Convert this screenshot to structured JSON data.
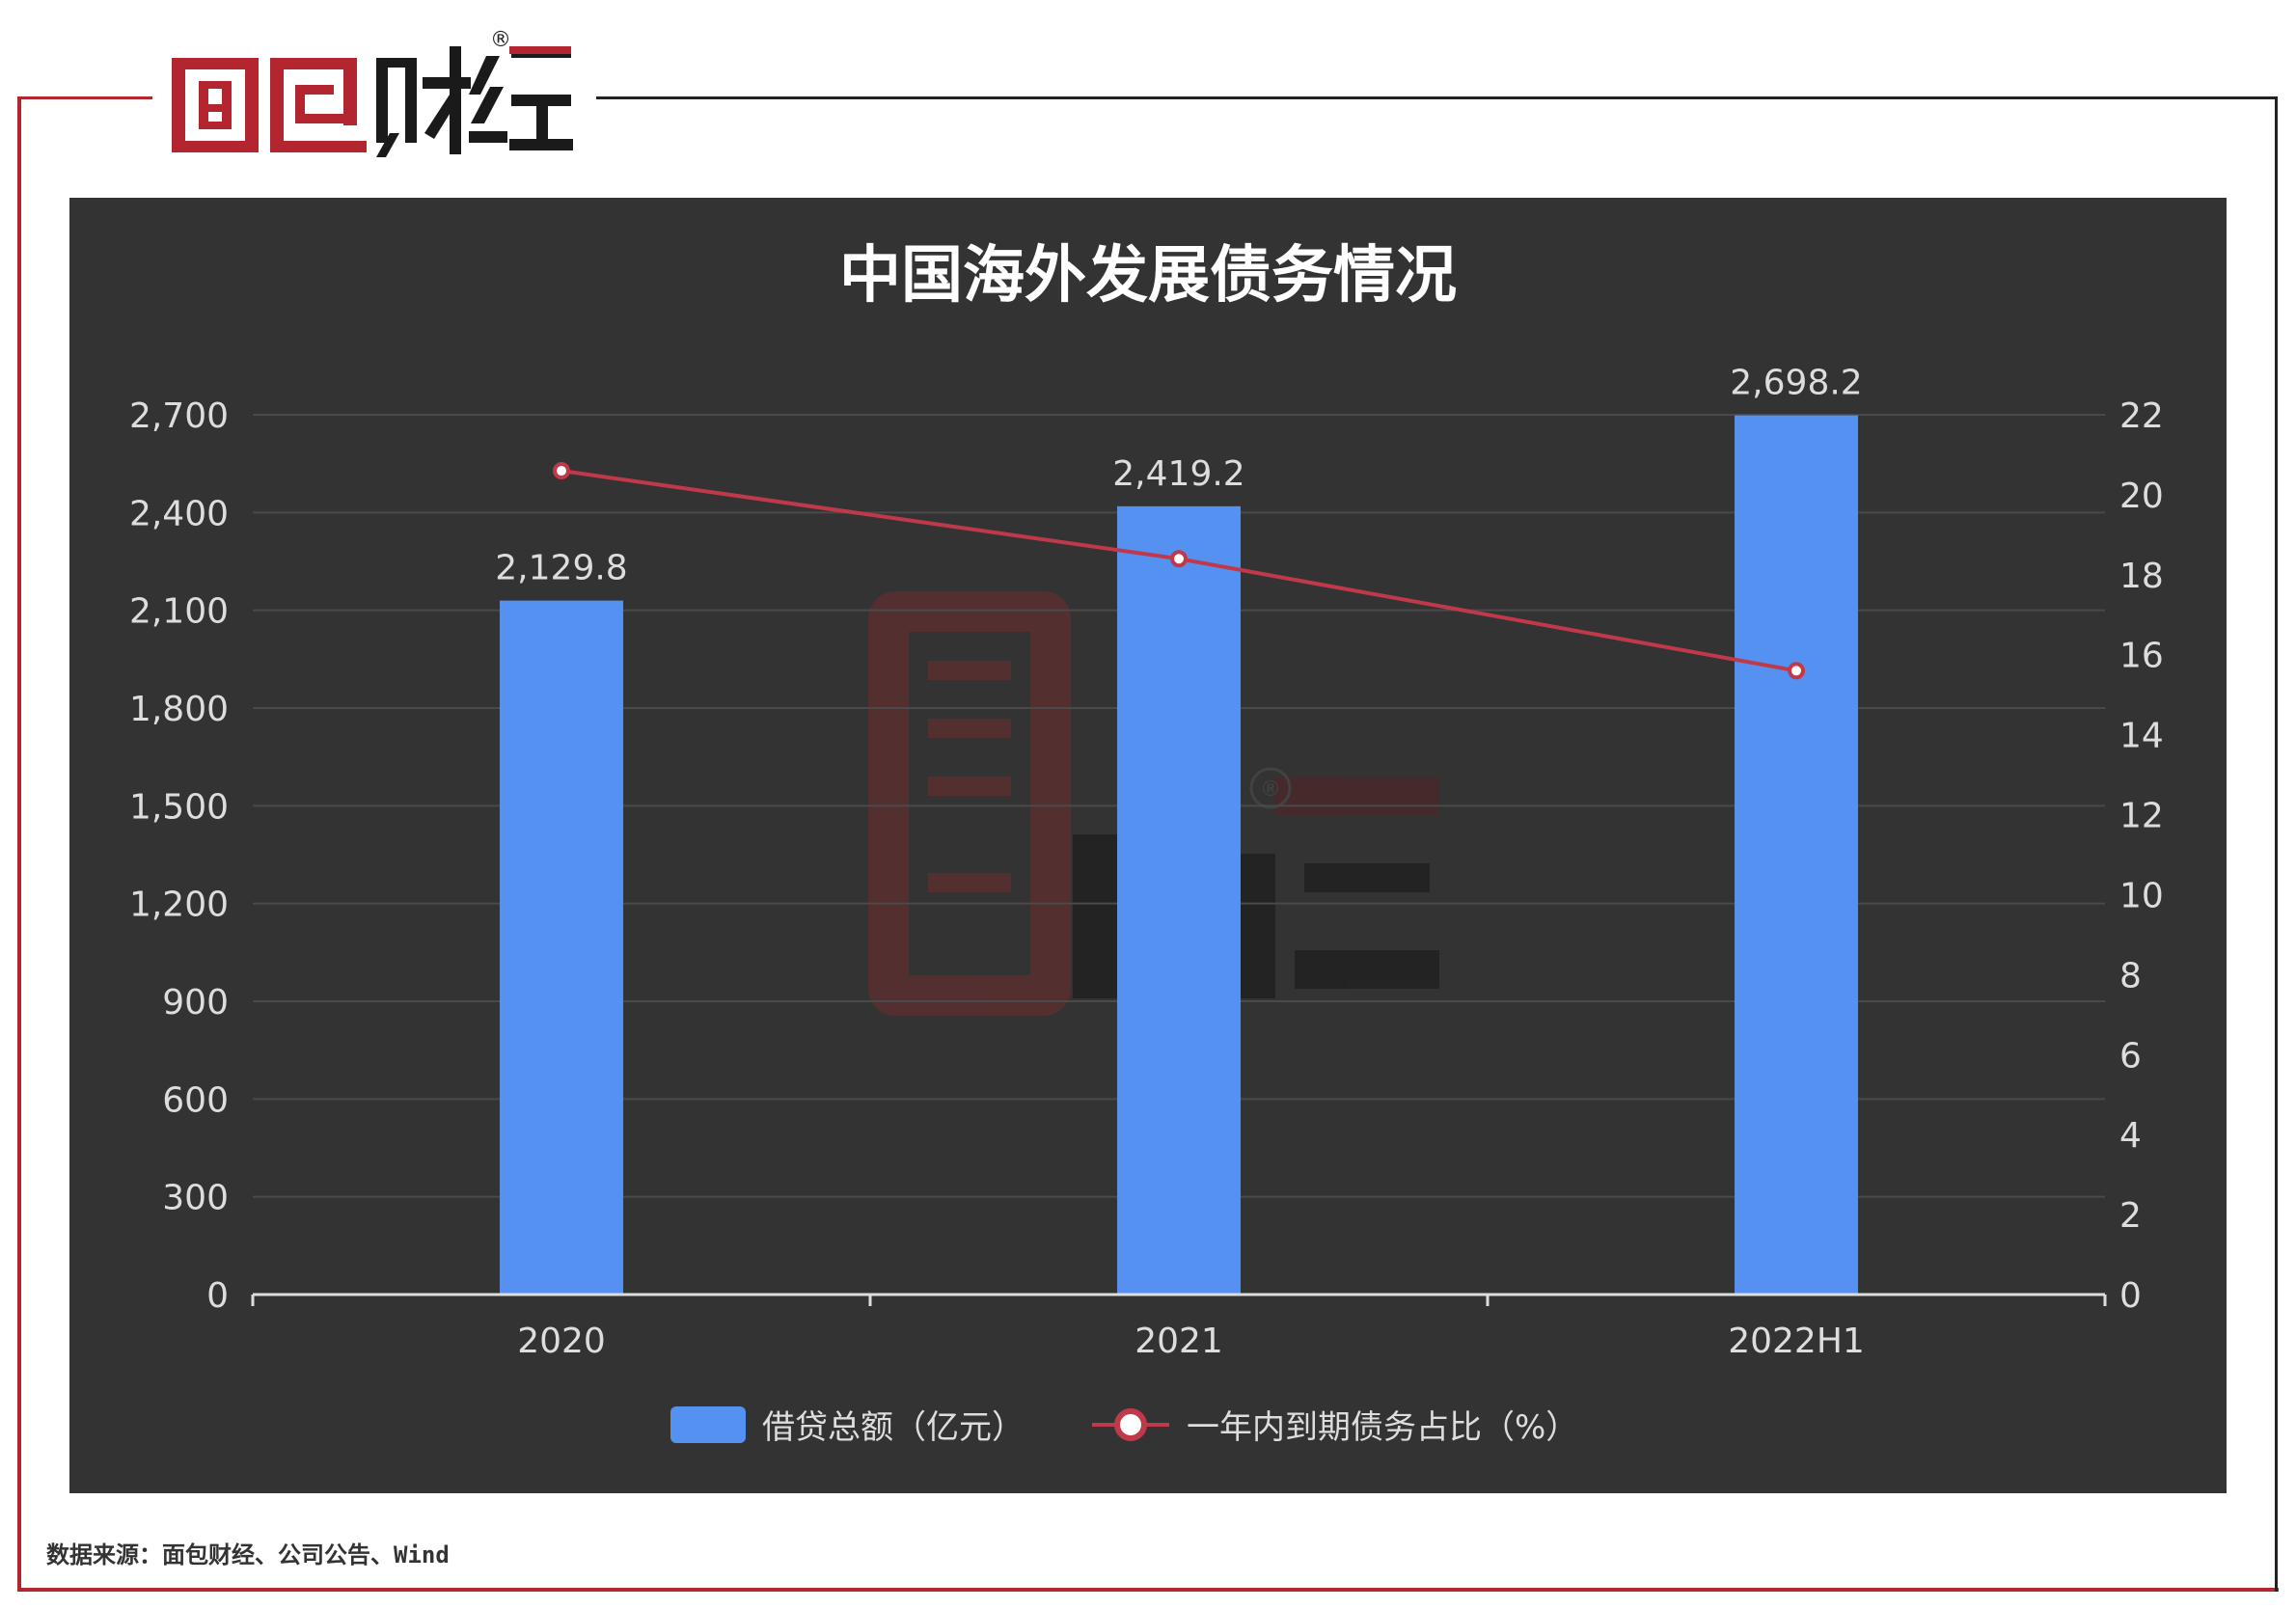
{
  "brand": {
    "logo_text": "面包财经",
    "registered_mark": "®",
    "primary_color": "#b3262f",
    "dark_color": "#1a1a1a"
  },
  "source_note": "数据来源：面包财经、公司公告、Wind",
  "chart_data": {
    "type": "bar+line",
    "title": "中国海外发展债务情况",
    "categories": [
      "2020",
      "2021",
      "2022H1"
    ],
    "series": [
      {
        "name": "借贷总额（亿元）",
        "type": "bar",
        "axis": "left",
        "values": [
          2129.8,
          2419.2,
          2698.2
        ],
        "value_labels": [
          "2,129.8",
          "2,419.2",
          "2,698.2"
        ],
        "color": "#5591f0"
      },
      {
        "name": "一年内到期债务占比（%）",
        "type": "line",
        "axis": "right",
        "values": [
          20.6,
          18.4,
          15.6
        ],
        "color": "#c0394b"
      }
    ],
    "y_left": {
      "min": 0,
      "max": 2700,
      "ticks": [
        0,
        300,
        600,
        900,
        1200,
        1500,
        1800,
        2100,
        2400,
        2700
      ],
      "tick_labels": [
        "0",
        "300",
        "600",
        "900",
        "1,200",
        "1,500",
        "1,800",
        "2,100",
        "2,400",
        "2,700"
      ]
    },
    "y_right": {
      "min": 0,
      "max": 22,
      "ticks": [
        0,
        2,
        4,
        6,
        8,
        10,
        12,
        14,
        16,
        18,
        20,
        22
      ],
      "tick_labels": [
        "0",
        "2",
        "4",
        "6",
        "8",
        "10",
        "12",
        "14",
        "16",
        "18",
        "20",
        "22"
      ]
    },
    "grid": true,
    "legend": "bottom-center",
    "background": "#333333",
    "text_color": "#dddddd",
    "watermark": "面包财经"
  }
}
